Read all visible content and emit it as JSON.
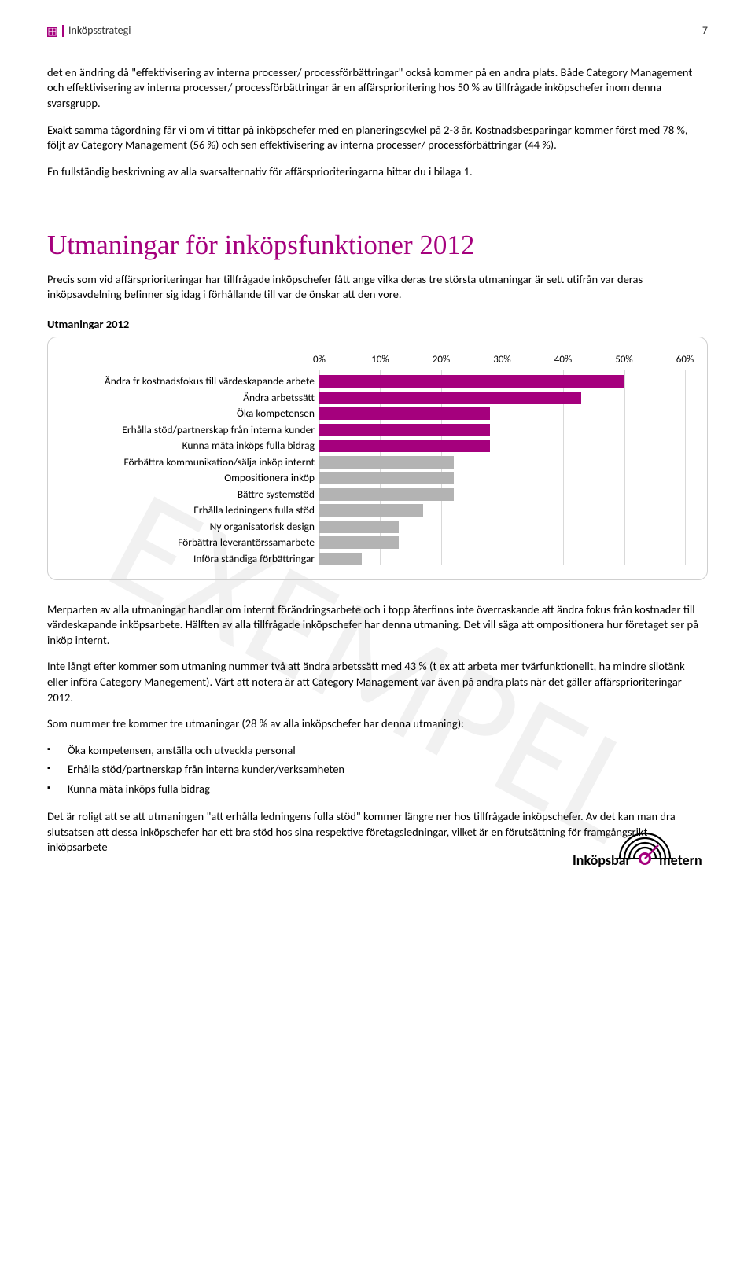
{
  "header": {
    "section_title": "Inköpsstrategi",
    "page_number": "7"
  },
  "watermark_text": "EXEMPEL",
  "paragraphs": {
    "p1": "det en ändring då \"effektivisering av interna processer/ processförbättringar\" också kommer på en andra plats. Både Category Management och effektivisering av interna processer/ processförbättringar är en affärsprioritering hos 50 % av tillfrågade inköpschefer inom denna svarsgrupp.",
    "p2": "Exakt samma tågordning får vi om vi tittar på inköpschefer med en planeringscykel på 2-3 år. Kostnadsbesparingar kommer först med 78 %, följt av Category Management (56 %) och sen effektivisering av interna processer/ processförbättringar (44 %).",
    "p3": "En fullständig beskrivning av alla svarsalternativ för affärsprioriteringarna hittar du i bilaga 1.",
    "section_title": "Utmaningar för inköpsfunktioner 2012",
    "p_intro": "Precis som vid affärsprioriteringar har tillfrågade inköpschefer fått ange vilka deras tre största utmaningar är sett utifrån var deras inköpsavdelning befinner sig idag i förhållande till var de önskar att den vore.",
    "chart_title": "Utmaningar 2012",
    "p_after1": "Merparten av alla utmaningar handlar om internt förändringsarbete och i topp återfinns inte överraskande att ändra fokus från kostnader till värdeskapande inköpsarbete. Hälften av alla tillfrågade inköpschefer har denna utmaning. Det vill säga att ompositionera hur företaget ser på inköp internt.",
    "p_after2": "Inte långt efter kommer som utmaning nummer två att ändra arbetssätt med 43 % (t ex att arbeta mer tvärfunktionellt, ha mindre silotänk eller införa Category Manegement). Värt att notera är att Category Management var även på andra plats när det gäller affärsprioriteringar 2012.",
    "p_after3": "Som nummer tre kommer tre utmaningar (28 % av alla inköpschefer har denna utmaning):",
    "p_after4": "Det är roligt att se att utmaningen \"att erhålla ledningens fulla stöd\" kommer längre ner hos tillfrågade inköpschefer. Av det kan man dra slutsatsen att dessa inköpschefer har ett bra stöd hos sina respektive företagsledningar, vilket är en förutsättning för framgångsrikt inköpsarbete"
  },
  "bullets": [
    "Öka kompetensen, anställa och utveckla personal",
    "Erhålla stöd/partnerskap från interna kunder/verksamheten",
    "Kunna mäta inköps fulla bidrag"
  ],
  "chart": {
    "type": "bar-horizontal",
    "x_ticks": [
      "0%",
      "10%",
      "20%",
      "30%",
      "40%",
      "50%",
      "60%"
    ],
    "x_max": 60,
    "bar_primary_color": "#a5007d",
    "bar_secondary_color": "#b3b3b3",
    "grid_color": "#d9d9d9",
    "background_color": "#ffffff",
    "categories": [
      {
        "label": "Ändra fr kostnadsfokus till värdeskapande arbete",
        "value": 50,
        "primary": true
      },
      {
        "label": "Ändra arbetssätt",
        "value": 43,
        "primary": true
      },
      {
        "label": "Öka kompetensen",
        "value": 28,
        "primary": true
      },
      {
        "label": "Erhålla stöd/partnerskap från interna kunder",
        "value": 28,
        "primary": true
      },
      {
        "label": "Kunna mäta inköps fulla bidrag",
        "value": 28,
        "primary": true
      },
      {
        "label": "Förbättra kommunikation/sälja inköp internt",
        "value": 22,
        "primary": false
      },
      {
        "label": "Ompositionera inköp",
        "value": 22,
        "primary": false
      },
      {
        "label": "Bättre systemstöd",
        "value": 22,
        "primary": false
      },
      {
        "label": "Erhålla ledningens fulla stöd",
        "value": 17,
        "primary": false
      },
      {
        "label": "Ny organisatorisk design",
        "value": 13,
        "primary": false
      },
      {
        "label": "Förbättra leverantörssamarbete",
        "value": 13,
        "primary": false
      },
      {
        "label": "Införa ständiga förbättringar",
        "value": 7,
        "primary": false
      }
    ]
  },
  "footer_logo": {
    "text_left": "Inköpsbar",
    "text_right": "metern"
  }
}
